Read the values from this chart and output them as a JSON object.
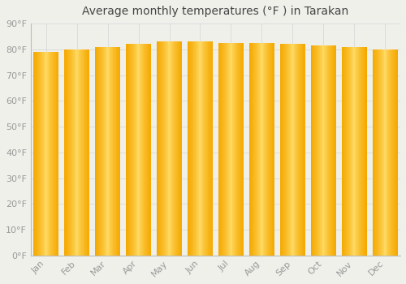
{
  "title": "Average monthly temperatures (°F ) in Tarakan",
  "months": [
    "Jan",
    "Feb",
    "Mar",
    "Apr",
    "May",
    "Jun",
    "Jul",
    "Aug",
    "Sep",
    "Oct",
    "Nov",
    "Dec"
  ],
  "values": [
    79.0,
    80.0,
    81.0,
    82.0,
    83.0,
    83.0,
    82.5,
    82.5,
    82.0,
    81.5,
    81.0,
    80.0
  ],
  "bar_edge_color": "#F5A800",
  "bar_center_color": "#FFD966",
  "background_color": "#f0f0eb",
  "grid_color": "#d8d8d8",
  "ylim": [
    0,
    90
  ],
  "yticks": [
    0,
    10,
    20,
    30,
    40,
    50,
    60,
    70,
    80,
    90
  ],
  "ytick_labels": [
    "0°F",
    "10°F",
    "20°F",
    "30°F",
    "40°F",
    "50°F",
    "60°F",
    "70°F",
    "80°F",
    "90°F"
  ],
  "title_fontsize": 10,
  "tick_fontsize": 8,
  "tick_color": "#999999",
  "axis_color": "#bbbbbb",
  "bar_width": 0.82
}
